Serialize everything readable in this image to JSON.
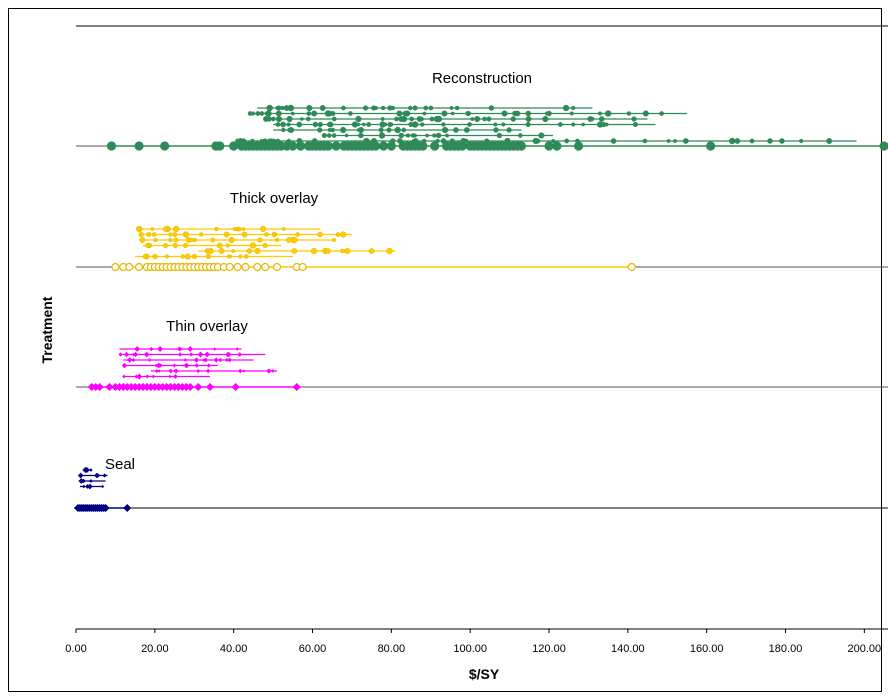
{
  "chart_data": {
    "type": "scatter",
    "title": "",
    "xlabel": "$/SY",
    "ylabel": "Treatment",
    "xlim": [
      0,
      206
    ],
    "x_ticks": [
      "0.00",
      "20.00",
      "40.00",
      "60.00",
      "80.00",
      "100.00",
      "120.00",
      "140.00",
      "160.00",
      "180.00",
      "200.00"
    ],
    "x_tick_values": [
      0,
      20,
      40,
      60,
      80,
      100,
      120,
      140,
      160,
      180,
      200
    ],
    "grid": "horizontal category lines",
    "legend": "none",
    "series": [
      {
        "name": "Reconstruction",
        "color": "#2e8b57",
        "marker": "circle",
        "points": [
          9,
          16,
          22.5,
          35.5,
          36.5,
          40,
          42,
          43,
          44,
          45,
          46,
          47,
          48,
          49,
          50,
          51,
          52,
          53.5,
          55,
          57,
          59,
          60,
          61,
          62,
          63,
          64,
          66,
          68,
          69,
          70,
          71,
          72,
          73,
          74,
          75,
          76,
          78,
          80,
          83,
          84,
          85,
          86,
          87,
          88,
          91,
          94,
          95,
          96,
          97,
          98,
          100,
          101,
          102,
          103,
          104,
          105,
          106,
          107,
          108,
          109,
          110,
          111,
          112,
          113,
          120,
          122,
          127.5,
          161,
          205
        ],
        "stacked_ranges": [
          {
            "low": 46,
            "high": 131
          },
          {
            "low": 44,
            "high": 155
          },
          {
            "low": 48,
            "high": 145
          },
          {
            "low": 50,
            "high": 147
          },
          {
            "low": 50,
            "high": 113
          },
          {
            "low": 63,
            "high": 121
          },
          {
            "low": 41,
            "high": 198
          }
        ]
      },
      {
        "name": "Thick overlay",
        "color": "#ffcc00",
        "marker": "circle",
        "points": [
          10,
          12,
          13.5,
          16,
          18,
          19,
          20,
          21,
          22,
          23,
          24,
          25,
          26,
          27,
          28,
          29,
          30,
          31,
          32,
          33,
          34,
          35,
          36,
          37.5,
          39,
          41,
          43,
          46,
          48,
          51,
          56,
          57.5,
          141
        ],
        "stacked_ranges": [
          {
            "low": 16,
            "high": 62
          },
          {
            "low": 16,
            "high": 70
          },
          {
            "low": 16,
            "high": 66
          },
          {
            "low": 17,
            "high": 52
          },
          {
            "low": 31,
            "high": 81
          },
          {
            "low": 15,
            "high": 55
          }
        ]
      },
      {
        "name": "Thin overlay",
        "color": "#ff00ff",
        "marker": "diamond",
        "points": [
          4,
          5,
          6,
          8.5,
          10,
          11,
          12,
          13,
          14,
          15,
          16,
          17,
          18,
          19,
          20,
          21,
          22,
          23,
          24,
          25,
          26,
          27,
          28,
          29,
          31,
          34,
          40.5,
          56
        ],
        "stacked_ranges": [
          {
            "low": 11,
            "high": 42
          },
          {
            "low": 11,
            "high": 48
          },
          {
            "low": 12,
            "high": 45
          },
          {
            "low": 12,
            "high": 36
          },
          {
            "low": 19,
            "high": 51
          },
          {
            "low": 12,
            "high": 34
          }
        ]
      },
      {
        "name": "Seal",
        "color": "#000080",
        "marker": "diamond",
        "points": [
          0.5,
          1,
          1.5,
          2,
          2.5,
          3,
          3.5,
          4,
          4.5,
          5,
          5.5,
          6,
          6.5,
          7,
          7.5,
          13
        ],
        "stacked_ranges": [
          {
            "low": 2,
            "high": 4
          },
          {
            "low": 1,
            "high": 8
          },
          {
            "low": 1,
            "high": 7.5
          },
          {
            "low": 1,
            "high": 7
          }
        ]
      }
    ]
  }
}
